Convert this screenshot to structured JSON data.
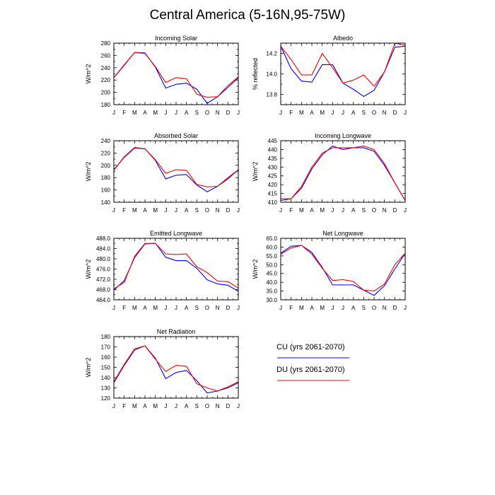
{
  "figure_title": "Central America (5-16N,95-75W)",
  "colors": {
    "cu": "#0000ff",
    "du": "#ff0000",
    "axis": "#000000"
  },
  "legend": {
    "entries": [
      {
        "label": "CU (yrs 2061-2070)",
        "color": "#0000ff"
      },
      {
        "label": "DU (yrs 2061-2070)",
        "color": "#ff0000"
      }
    ]
  },
  "chart_data": [
    {
      "type": "line",
      "title": "Incoming Solar",
      "ylabel": "W/m^2",
      "categories": [
        "J",
        "F",
        "M",
        "A",
        "M",
        "J",
        "J",
        "A",
        "S",
        "O",
        "N",
        "D",
        "J"
      ],
      "ylim": [
        180,
        280
      ],
      "yticks": [
        180,
        190,
        200,
        210,
        220,
        230,
        240,
        250,
        260,
        270,
        280
      ],
      "yticklabels": [
        "180",
        "",
        "200",
        "",
        "220",
        "",
        "240",
        "",
        "260",
        "",
        "280"
      ],
      "series": [
        {
          "name": "CU (yrs 2061-2070)",
          "color": "#0000ff",
          "values": [
            224,
            244,
            265,
            264,
            241,
            207,
            213,
            215,
            205,
            182,
            193,
            208,
            224
          ]
        },
        {
          "name": "DU (yrs 2061-2070)",
          "color": "#ff0000",
          "values": [
            224,
            245,
            265,
            263,
            242,
            216,
            224,
            222,
            197,
            192,
            193,
            211,
            225
          ]
        }
      ]
    },
    {
      "type": "line",
      "title": "Albedo",
      "ylabel": "% reflected",
      "categories": [
        "J",
        "F",
        "M",
        "A",
        "M",
        "J",
        "J",
        "A",
        "S",
        "O",
        "N",
        "D",
        "J"
      ],
      "ylim": [
        13.7,
        14.3
      ],
      "yticks": [
        13.7,
        13.8,
        13.9,
        14.0,
        14.1,
        14.2,
        14.3
      ],
      "yticklabels": [
        "",
        "13.8",
        "",
        "14.0",
        "",
        "14.2",
        ""
      ],
      "series": [
        {
          "name": "CU (yrs 2061-2070)",
          "color": "#0000ff",
          "values": [
            14.27,
            14.05,
            13.93,
            13.92,
            14.09,
            14.09,
            13.91,
            13.85,
            13.78,
            13.84,
            14.02,
            14.26,
            14.27
          ]
        },
        {
          "name": "DU (yrs 2061-2070)",
          "color": "#ff0000",
          "values": [
            14.27,
            14.14,
            13.99,
            13.99,
            14.2,
            14.06,
            13.91,
            13.94,
            13.99,
            13.88,
            14.02,
            14.3,
            14.28
          ]
        }
      ]
    },
    {
      "type": "line",
      "title": "Absorbed Solar",
      "ylabel": "W/m^2",
      "categories": [
        "J",
        "F",
        "M",
        "A",
        "M",
        "J",
        "J",
        "A",
        "S",
        "O",
        "N",
        "D",
        "J"
      ],
      "ylim": [
        140,
        240
      ],
      "yticks": [
        140,
        150,
        160,
        170,
        180,
        190,
        200,
        210,
        220,
        230,
        240
      ],
      "yticklabels": [
        "140",
        "",
        "160",
        "",
        "180",
        "",
        "200",
        "",
        "220",
        "",
        "240"
      ],
      "series": [
        {
          "name": "CU (yrs 2061-2070)",
          "color": "#0000ff",
          "values": [
            193,
            213,
            228,
            227,
            208,
            178,
            184,
            185,
            168,
            157,
            166,
            178,
            193
          ]
        },
        {
          "name": "DU (yrs 2061-2070)",
          "color": "#ff0000",
          "values": [
            192,
            214,
            229,
            227,
            209,
            187,
            193,
            192,
            169,
            165,
            166,
            180,
            193
          ]
        }
      ]
    },
    {
      "type": "line",
      "title": "Incoming Longwave",
      "ylabel": "W/m^2",
      "categories": [
        "J",
        "F",
        "M",
        "A",
        "M",
        "J",
        "J",
        "A",
        "S",
        "O",
        "N",
        "D",
        "J"
      ],
      "ylim": [
        410,
        445
      ],
      "yticks": [
        410,
        415,
        420,
        425,
        430,
        435,
        440,
        445
      ],
      "yticklabels": [
        "410",
        "415",
        "420",
        "425",
        "430",
        "435",
        "440",
        "445"
      ],
      "series": [
        {
          "name": "CU (yrs 2061-2070)",
          "color": "#0000ff",
          "values": [
            411,
            412,
            418,
            429,
            437,
            442,
            440,
            441,
            441,
            439,
            431,
            421,
            411
          ]
        },
        {
          "name": "DU (yrs 2061-2070)",
          "color": "#ff0000",
          "values": [
            412,
            412,
            419,
            430,
            438,
            441,
            441,
            441,
            442,
            440,
            432,
            421,
            411
          ]
        }
      ]
    },
    {
      "type": "line",
      "title": "Emitted Longwave",
      "ylabel": "W/m^2",
      "categories": [
        "J",
        "F",
        "M",
        "A",
        "M",
        "J",
        "J",
        "A",
        "S",
        "O",
        "N",
        "D",
        "J"
      ],
      "ylim": [
        464,
        488
      ],
      "yticks": [
        464,
        466,
        468,
        470,
        472,
        474,
        476,
        478,
        480,
        482,
        484,
        486,
        488
      ],
      "yticklabels": [
        "464.0",
        "",
        "468.0",
        "",
        "472.0",
        "",
        "476.0",
        "",
        "480.0",
        "",
        "484.0",
        "",
        "488.0"
      ],
      "series": [
        {
          "name": "CU (yrs 2061-2070)",
          "color": "#0000ff",
          "values": [
            467.8,
            471.5,
            480.5,
            485.8,
            486.1,
            480.6,
            479.3,
            479.3,
            476.3,
            471.8,
            470.2,
            469.7,
            467.3
          ]
        },
        {
          "name": "DU (yrs 2061-2070)",
          "color": "#ff0000",
          "values": [
            468.3,
            470.8,
            481.0,
            486.0,
            486.0,
            481.9,
            481.7,
            481.9,
            476.9,
            474.6,
            471.3,
            471.1,
            468.6
          ]
        }
      ]
    },
    {
      "type": "line",
      "title": "Net Longwave",
      "ylabel": "W/m^2",
      "categories": [
        "J",
        "F",
        "M",
        "A",
        "M",
        "J",
        "J",
        "A",
        "S",
        "O",
        "N",
        "D",
        "J"
      ],
      "ylim": [
        30,
        65
      ],
      "yticks": [
        30,
        35,
        40,
        45,
        50,
        55,
        60,
        65
      ],
      "yticklabels": [
        "30.0",
        "35.0",
        "40.0",
        "45.0",
        "50.0",
        "55.0",
        "60.0",
        "65.0"
      ],
      "series": [
        {
          "name": "CU (yrs 2061-2070)",
          "color": "#0000ff",
          "values": [
            56.5,
            60.5,
            61.0,
            57.0,
            48.5,
            38.5,
            38.5,
            38.5,
            35.5,
            32.5,
            38.0,
            47.5,
            56.5
          ]
        },
        {
          "name": "DU (yrs 2061-2070)",
          "color": "#ff0000",
          "values": [
            56.0,
            59.5,
            61.0,
            56.0,
            48.0,
            41.0,
            41.5,
            40.5,
            35.5,
            35.0,
            39.0,
            50.0,
            56.5
          ]
        }
      ]
    },
    {
      "type": "line",
      "title": "Net Radiation",
      "ylabel": "W/m^2",
      "categories": [
        "J",
        "F",
        "M",
        "A",
        "M",
        "J",
        "J",
        "A",
        "S",
        "O",
        "N",
        "D",
        "J"
      ],
      "ylim": [
        120,
        180
      ],
      "yticks": [
        120,
        130,
        140,
        150,
        160,
        170,
        180
      ],
      "yticklabels": [
        "120",
        "130",
        "140",
        "150",
        "160",
        "170",
        "180"
      ],
      "series": [
        {
          "name": "CU (yrs 2061-2070)",
          "color": "#0000ff",
          "values": [
            135,
            152,
            167,
            171,
            159,
            139,
            145,
            147,
            137,
            125,
            127,
            130,
            135
          ]
        },
        {
          "name": "DU (yrs 2061-2070)",
          "color": "#ff0000",
          "values": [
            136,
            153,
            168,
            171,
            158,
            146,
            152,
            151,
            134,
            130,
            127,
            131,
            136
          ]
        }
      ]
    }
  ]
}
